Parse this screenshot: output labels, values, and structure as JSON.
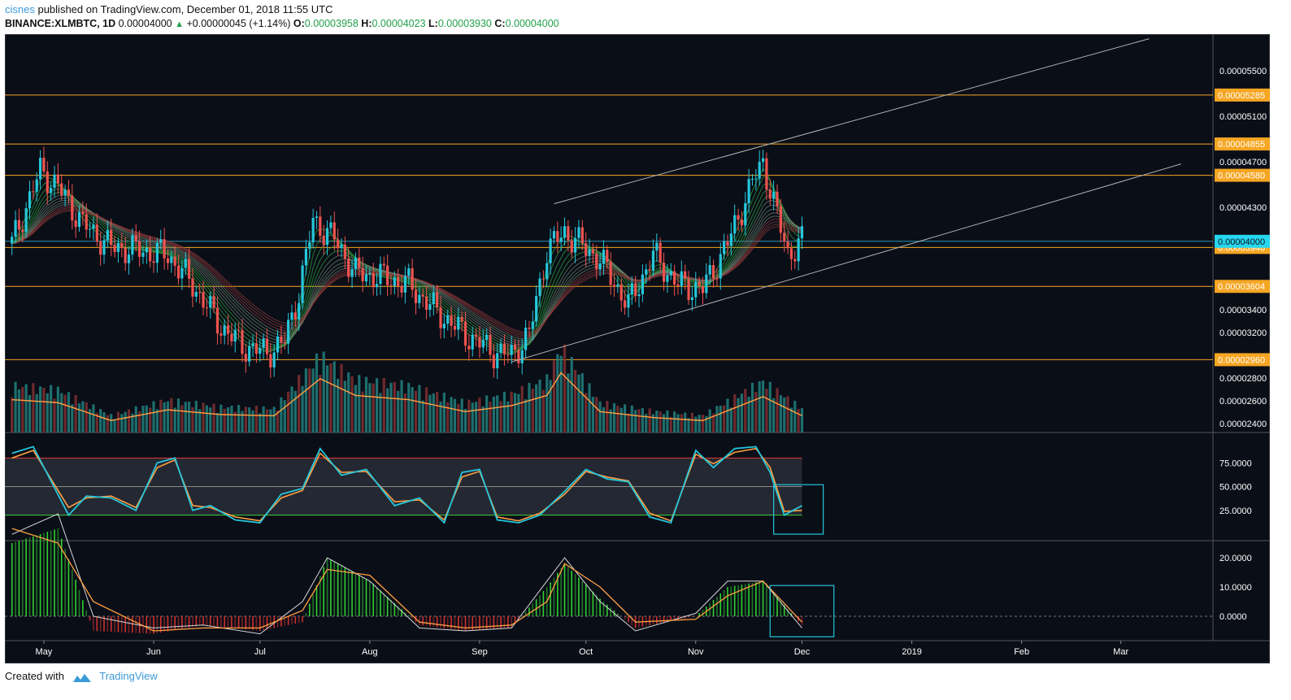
{
  "header": {
    "user": "cisnes",
    "published_text": " published on TradingView.com, December 01, 2018 11:55 UTC",
    "symbol": "BINANCE:XLMBTC, 1D",
    "last": "0.00004000",
    "change": "+0.00000045 (+1.14%)",
    "o_label": "O:",
    "o_value": "0.00003958",
    "h_label": "H:",
    "h_value": "0.00004023",
    "l_label": "L:",
    "l_value": "0.00003930",
    "c_label": "C:",
    "c_value": "0.00004000"
  },
  "footer": {
    "created_with": "Created with",
    "brand": "TradingView"
  },
  "colors": {
    "background": "#0a0e17",
    "bull": "#26c6da",
    "bear": "#ef5350",
    "level": "#f5a623",
    "trend": "#b0b0b0",
    "current": "#26d7f0",
    "ma": "#ff9f43",
    "grid_text": "#ffffff"
  },
  "chart_data": {
    "type": "candlestick",
    "symbol": "BINANCE:XLMBTC",
    "timeframe": "1D",
    "x_axis": {
      "labels": [
        "May",
        "Jun",
        "Jul",
        "Aug",
        "Sep",
        "Oct",
        "Nov",
        "Dec",
        "2019",
        "Feb",
        "Mar"
      ],
      "label_dates": [
        "2018-05-01",
        "2018-06-01",
        "2018-07-01",
        "2018-08-01",
        "2018-09-01",
        "2018-10-01",
        "2018-11-01",
        "2018-12-01",
        "2019-01-01",
        "2019-02-01",
        "2019-03-01"
      ]
    },
    "price_axis": {
      "ylim": [
        2.32e-05,
        5.82e-05
      ],
      "ticks": [
        "0.00005500",
        "0.00005100",
        "0.00004700",
        "0.00004300",
        "0.00003400",
        "0.00003200",
        "0.00002800",
        "0.00002600",
        "0.00002400"
      ],
      "tick_values": [
        5.5e-05,
        5.1e-05,
        4.7e-05,
        4.3e-05,
        3.4e-05,
        3.2e-05,
        2.8e-05,
        2.6e-05,
        2.4e-05
      ]
    },
    "horizontal_levels": [
      {
        "label": "0.00005285",
        "value": 5.285e-05
      },
      {
        "label": "0.00004855",
        "value": 4.855e-05
      },
      {
        "label": "0.00004580",
        "value": 4.58e-05
      },
      {
        "label": "0.00003946",
        "value": 3.946e-05
      },
      {
        "label": "0.00003604",
        "value": 3.604e-05
      },
      {
        "label": "0.00002960",
        "value": 2.96e-05
      }
    ],
    "current_price": {
      "label": "0.00004000",
      "value": 4e-05
    },
    "trend_lines": [
      {
        "from": [
          "2018-09-22",
          4.33e-05
        ],
        "to": [
          "2019-03-09",
          5.78e-05
        ]
      },
      {
        "from": [
          "2018-09-10",
          2.94e-05
        ],
        "to": [
          "2019-03-18",
          4.68e-05
        ]
      }
    ],
    "price_series": {
      "dates": [
        "2018-04-22",
        "2018-04-30",
        "2018-05-05",
        "2018-05-12",
        "2018-05-20",
        "2018-05-28",
        "2018-06-05",
        "2018-06-12",
        "2018-06-20",
        "2018-06-26",
        "2018-07-03",
        "2018-07-08",
        "2018-07-12",
        "2018-07-16",
        "2018-07-22",
        "2018-07-28",
        "2018-08-05",
        "2018-08-12",
        "2018-08-20",
        "2018-08-28",
        "2018-09-05",
        "2018-09-10",
        "2018-09-15",
        "2018-09-20",
        "2018-09-25",
        "2018-10-05",
        "2018-10-13",
        "2018-10-20",
        "2018-10-27",
        "2018-11-03",
        "2018-11-10",
        "2018-11-17",
        "2018-11-20",
        "2018-11-24",
        "2018-11-27",
        "2018-12-01"
      ],
      "close": [
        3.98e-05,
        4.62e-05,
        4.48e-05,
        4.15e-05,
        3.95e-05,
        3.92e-05,
        3.88e-05,
        3.62e-05,
        3.25e-05,
        3.08e-05,
        3.02e-05,
        3.12e-05,
        3.55e-05,
        4.18e-05,
        4.02e-05,
        3.72e-05,
        3.68e-05,
        3.62e-05,
        3.38e-05,
        3.18e-05,
        3.03e-05,
        3e-05,
        3.18e-05,
        3.92e-05,
        4.08e-05,
        3.84e-05,
        3.44e-05,
        3.88e-05,
        3.62e-05,
        3.58e-05,
        3.98e-05,
        4.52e-05,
        4.7e-05,
        4.22e-05,
        3.89e-05,
        4e-05
      ]
    },
    "volume_series": {
      "dates": [
        "2018-04-22",
        "2018-05-05",
        "2018-05-20",
        "2018-06-05",
        "2018-06-20",
        "2018-07-05",
        "2018-07-18",
        "2018-07-28",
        "2018-08-12",
        "2018-08-28",
        "2018-09-10",
        "2018-09-20",
        "2018-09-24",
        "2018-10-05",
        "2018-10-20",
        "2018-11-03",
        "2018-11-20",
        "2018-12-01"
      ],
      "values": [
        0.55,
        0.5,
        0.2,
        0.38,
        0.3,
        0.28,
        0.9,
        0.62,
        0.55,
        0.35,
        0.45,
        0.62,
        1.0,
        0.35,
        0.25,
        0.2,
        0.6,
        0.28
      ]
    },
    "stoch_rsi": {
      "ticks": [
        "75.0000",
        "50.0000",
        "25.0000"
      ],
      "tick_values": [
        75,
        50,
        25
      ],
      "bands": [
        20,
        50,
        80
      ],
      "dates": [
        "2018-04-22",
        "2018-04-28",
        "2018-05-08",
        "2018-05-13",
        "2018-05-20",
        "2018-05-27",
        "2018-06-02",
        "2018-06-07",
        "2018-06-12",
        "2018-06-17",
        "2018-06-24",
        "2018-07-01",
        "2018-07-07",
        "2018-07-13",
        "2018-07-18",
        "2018-07-24",
        "2018-07-31",
        "2018-08-08",
        "2018-08-15",
        "2018-08-22",
        "2018-08-27",
        "2018-09-01",
        "2018-09-06",
        "2018-09-12",
        "2018-09-18",
        "2018-09-25",
        "2018-10-01",
        "2018-10-07",
        "2018-10-13",
        "2018-10-19",
        "2018-10-25",
        "2018-11-01",
        "2018-11-06",
        "2018-11-12",
        "2018-11-18",
        "2018-11-22",
        "2018-11-26",
        "2018-12-01"
      ],
      "k": [
        85,
        92,
        20,
        40,
        38,
        25,
        75,
        80,
        25,
        30,
        15,
        12,
        42,
        48,
        90,
        62,
        68,
        30,
        38,
        12,
        65,
        68,
        15,
        12,
        20,
        45,
        68,
        58,
        55,
        18,
        12,
        88,
        70,
        90,
        92,
        65,
        20,
        30
      ],
      "d": [
        80,
        88,
        28,
        38,
        40,
        28,
        70,
        78,
        30,
        28,
        18,
        14,
        38,
        46,
        85,
        65,
        66,
        34,
        36,
        15,
        60,
        66,
        18,
        14,
        22,
        42,
        66,
        60,
        56,
        22,
        14,
        84,
        74,
        86,
        90,
        70,
        24,
        25
      ]
    },
    "momentum": {
      "ticks": [
        "20.0000",
        "10.0000",
        "0.0000"
      ],
      "tick_values": [
        20,
        10,
        0
      ],
      "dates": [
        "2018-04-22",
        "2018-05-05",
        "2018-05-15",
        "2018-06-01",
        "2018-06-15",
        "2018-07-01",
        "2018-07-13",
        "2018-07-20",
        "2018-08-01",
        "2018-08-15",
        "2018-08-28",
        "2018-09-10",
        "2018-09-20",
        "2018-09-25",
        "2018-10-05",
        "2018-10-15",
        "2018-11-01",
        "2018-11-10",
        "2018-11-20",
        "2018-12-01"
      ],
      "histogram": [
        25,
        30,
        -5,
        -6,
        -3,
        -5,
        -2,
        20,
        12,
        -3,
        -5,
        -4,
        10,
        18,
        6,
        -4,
        0,
        10,
        12,
        -3
      ],
      "signal": [
        30,
        25,
        5,
        -5,
        -4,
        -4,
        2,
        16,
        14,
        -2,
        -4,
        -3,
        5,
        18,
        10,
        -2,
        -1,
        7,
        12,
        -2
      ],
      "fast": [
        28,
        35,
        0,
        -4,
        -3,
        -6,
        5,
        20,
        12,
        -4,
        -5,
        -4,
        12,
        20,
        5,
        -5,
        1,
        12,
        12,
        -4
      ]
    }
  }
}
